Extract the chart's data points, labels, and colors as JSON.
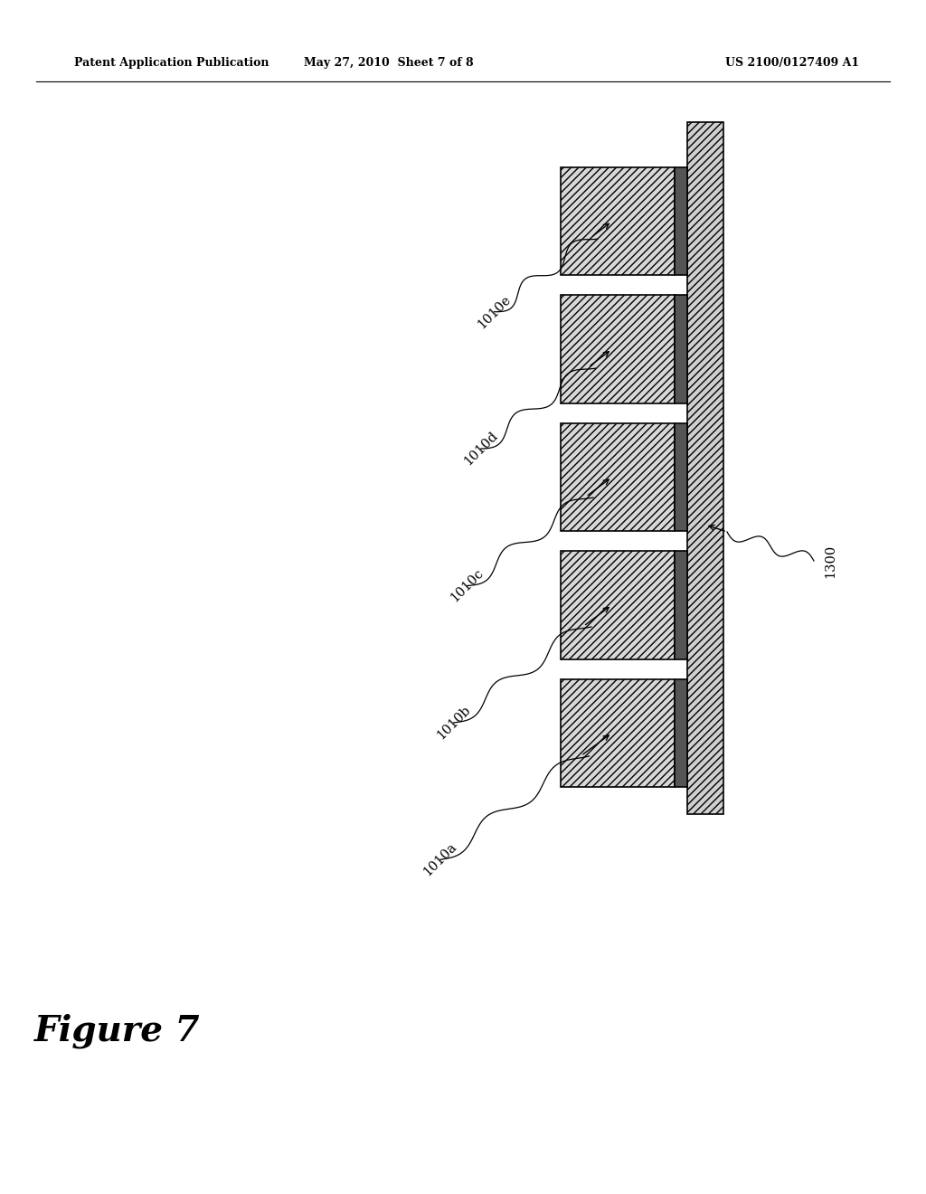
{
  "title_left": "Patent Application Publication",
  "title_mid": "May 27, 2010  Sheet 7 of 8",
  "title_right": "US 2100/0127409 A1",
  "figure_label": "Figure 7",
  "background_color": "#ffffff",
  "wafer_label": "1300",
  "chip_labels": [
    "1010a",
    "1010b",
    "1010c",
    "1010d",
    "1010e"
  ],
  "hatch_chip": "////",
  "hatch_wafer": "////",
  "chip_face_color": "#d8d8d8",
  "adhesive_face_color": "#555555",
  "wafer_face_color": "#d0d0d0",
  "edge_color": "#000000",
  "line_width": 1.2
}
